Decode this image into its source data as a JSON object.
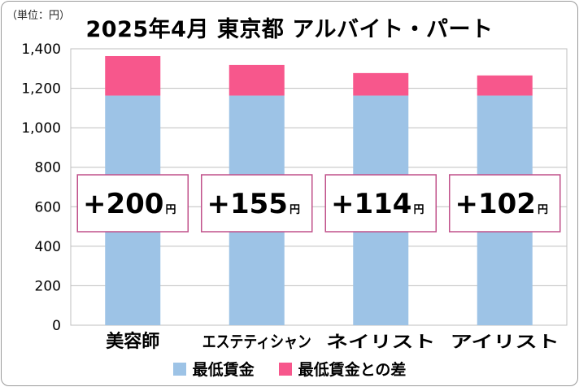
{
  "unit_label": "（単位：円）",
  "chart_data": {
    "type": "bar",
    "stacked": true,
    "title": "2025年4月 東京都 アルバイト・パート",
    "categories": [
      "美容師",
      "エステティシャン",
      "ネイリスト",
      "アイリスト"
    ],
    "series": [
      {
        "name": "最低賃金",
        "values": [
          1163,
          1163,
          1163,
          1163
        ],
        "color": "#9dc3e6"
      },
      {
        "name": "最低賃金との差",
        "values": [
          200,
          155,
          114,
          102
        ],
        "color": "#f7578c"
      }
    ],
    "data_labels": [
      "+200",
      "+155",
      "+114",
      "+102"
    ],
    "data_label_unit": "円",
    "ylim": [
      0,
      1400
    ],
    "yticks": [
      "0",
      "200",
      "400",
      "600",
      "800",
      "1,000",
      "1,200",
      "1,400"
    ],
    "grid": true,
    "legend_position": "bottom",
    "label_box_color": "#c0508a",
    "grid_color": "#bfbfbf"
  }
}
